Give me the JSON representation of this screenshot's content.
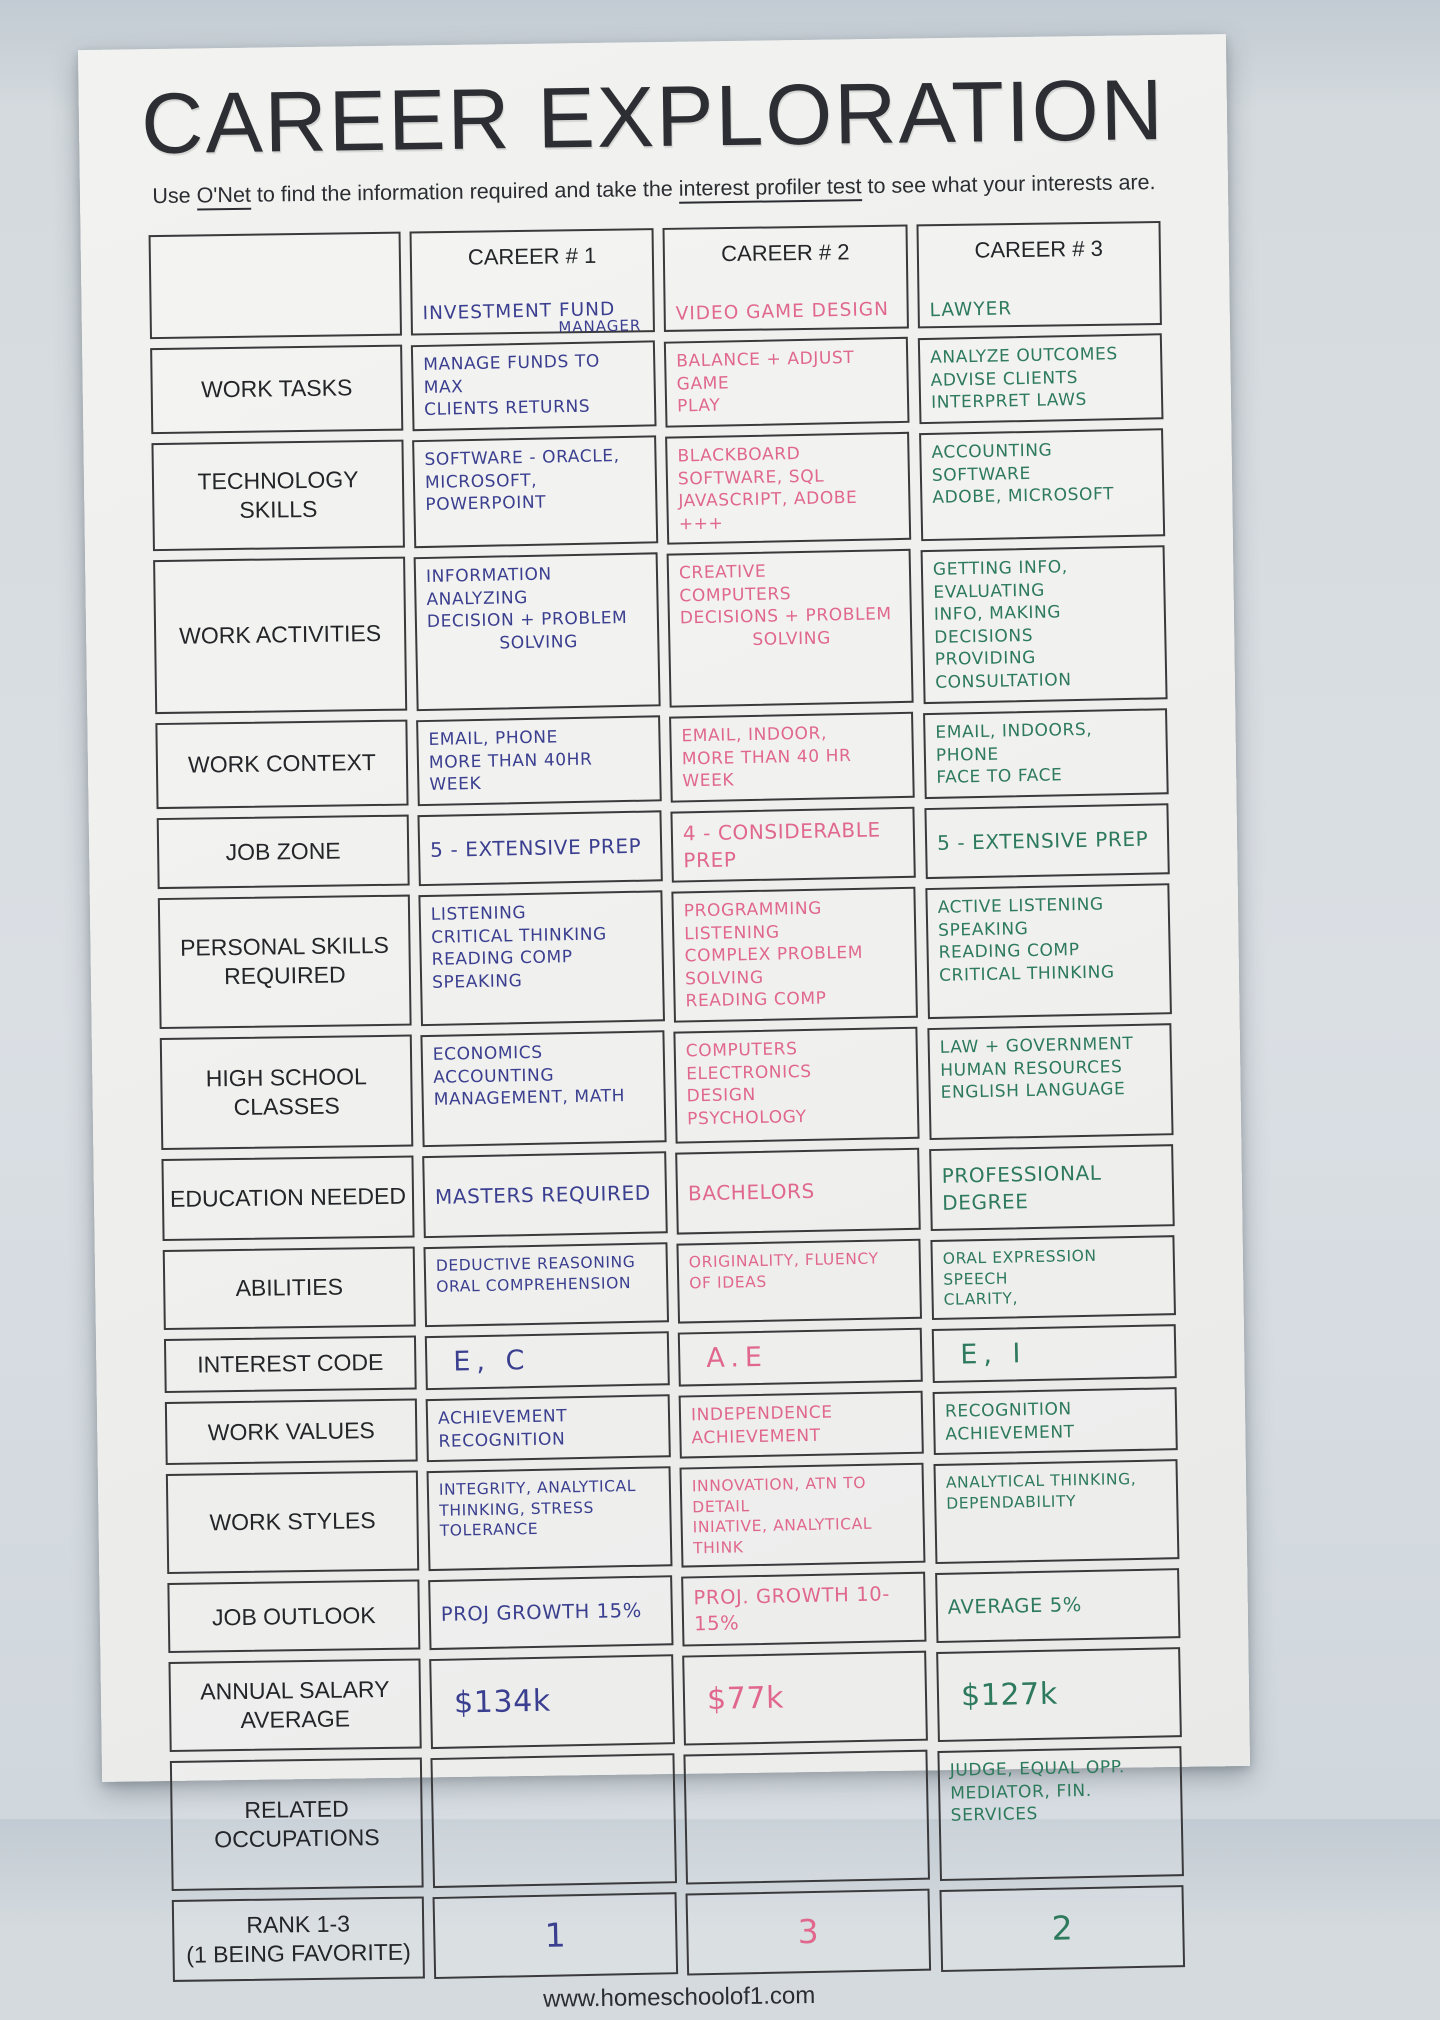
{
  "page": {
    "title": "CAREER EXPLORATION",
    "subtitle": {
      "prefix": "Use ",
      "link_onet": "O'Net",
      "middle": " to find the information required and take the ",
      "link_profiler": "interest profiler test",
      "suffix": " to see what your interests are."
    },
    "footer": "www.homeschoolof1.com"
  },
  "ink_colors": {
    "career1": "#3b3f8f",
    "career2": "#e0688d",
    "career3": "#2e7a5c"
  },
  "table": {
    "header": {
      "labels": [
        "CAREER # 1",
        "CAREER # 2",
        "CAREER # 3"
      ],
      "career_names": [
        {
          "line1": "INVESTMENT FUND",
          "line2": "MANAGER"
        },
        {
          "line1": "VIDEO GAME DESIGN",
          "line2": ""
        },
        {
          "line1": "LAWYER",
          "line2": ""
        }
      ]
    },
    "rows": [
      {
        "label": "WORK TASKS",
        "cells": [
          "MANAGE FUNDS TO MAX\nCLIENTS RETURNS",
          "BALANCE + ADJUST GAME\nPLAY",
          "ANALYZE OUTCOMES\nADVISE CLIENTS\nINTERPRET LAWS"
        ]
      },
      {
        "label": "TECHNOLOGY SKILLS",
        "cells": [
          "SOFTWARE - ORACLE,\nMICROSOFT, POWERPOINT",
          "BLACKBOARD SOFTWARE, SQL\nJAVASCRIPT, ADOBE +++",
          "ACCOUNTING SOFTWARE\nADOBE, MICROSOFT"
        ]
      },
      {
        "label": "WORK ACTIVITIES",
        "cells": [
          "INFORMATION\nANALYZING\nDECISION + PROBLEM\n            SOLVING",
          "CREATIVE\nCOMPUTERS\nDECISIONS + PROBLEM\n            SOLVING",
          "GETTING INFO, EVALUATING\nINFO, MAKING DECISIONS\nPROVIDING CONSULTATION"
        ]
      },
      {
        "label": "WORK CONTEXT",
        "cells": [
          "EMAIL, PHONE\nMORE THAN 40HR WEEK",
          "EMAIL, INDOOR,\nMORE THAN 40 HR WEEK",
          "EMAIL, INDOORS, PHONE\nFACE TO FACE"
        ]
      },
      {
        "label": "JOB ZONE",
        "cells": [
          "5 - EXTENSIVE PREP",
          "4 - CONSIDERABLE PREP",
          "5 - EXTENSIVE PREP"
        ]
      },
      {
        "label": "PERSONAL SKILLS\nREQUIRED",
        "cells": [
          "LISTENING\nCRITICAL THINKING\nREADING COMP\nSPEAKING",
          "PROGRAMMING\nLISTENING\nCOMPLEX PROBLEM SOLVING\nREADING COMP",
          "ACTIVE LISTENING\nSPEAKING\nREADING COMP\nCRITICAL THINKING"
        ]
      },
      {
        "label": "HIGH SCHOOL\nCLASSES",
        "cells": [
          "ECONOMICS\nACCOUNTING\nMANAGEMENT, MATH",
          "COMPUTERS\nELECTRONICS\nDESIGN\nPSYCHOLOGY",
          "LAW + GOVERNMENT\nHUMAN RESOURCES\nENGLISH LANGUAGE"
        ]
      },
      {
        "label": "EDUCATION NEEDED",
        "cells": [
          "MASTERS REQUIRED",
          "BACHELORS",
          "PROFESSIONAL DEGREE"
        ]
      },
      {
        "label": "ABILITIES",
        "cells": [
          "DEDUCTIVE REASONING\nORAL COMPREHENSION",
          "ORIGINALITY, FLUENCY\nOF IDEAS",
          "ORAL EXPRESSION SPEECH\nCLARITY,"
        ]
      },
      {
        "label": "INTEREST CODE",
        "cells": [
          "E, C",
          "A.E",
          "E, I"
        ]
      },
      {
        "label": "WORK VALUES",
        "cells": [
          "ACHIEVEMENT\nRECOGNITION",
          "INDEPENDENCE\nACHIEVEMENT",
          "RECOGNITION\nACHIEVEMENT"
        ]
      },
      {
        "label": "WORK STYLES",
        "cells": [
          "INTEGRITY, ANALYTICAL\nTHINKING, STRESS TOLERANCE",
          "INNOVATION, ATN TO DETAIL\nINIATIVE, ANALYTICAL THINK",
          "ANALYTICAL THINKING,\nDEPENDABILITY"
        ]
      },
      {
        "label": "JOB OUTLOOK",
        "cells": [
          "PROJ GROWTH 15%",
          "PROJ. GROWTH 10-15%",
          "AVERAGE 5%"
        ]
      },
      {
        "label": "ANNUAL SALARY\nAVERAGE",
        "cells": [
          "$134k",
          "$77k",
          "$127k"
        ]
      },
      {
        "label": "RELATED\nOCCUPATIONS",
        "cells": [
          "",
          "",
          "JUDGE, EQUAL OPP.\nMEDIATOR, FIN. SERVICES"
        ]
      },
      {
        "label": "RANK 1-3\n(1 BEING FAVORITE)",
        "cells": [
          "1",
          "3",
          "2"
        ]
      }
    ]
  }
}
